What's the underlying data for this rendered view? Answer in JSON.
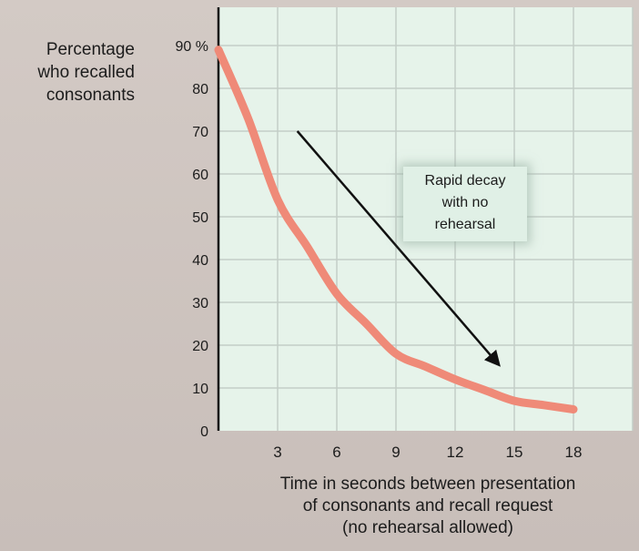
{
  "chart_data": {
    "type": "line",
    "ylabel": [
      "Percentage",
      "who recalled",
      "consonants"
    ],
    "xlabel": [
      "Time in seconds between presentation",
      "of consonants and recall request",
      "(no rehearsal allowed)"
    ],
    "x_ticks": [
      "3",
      "6",
      "9",
      "12",
      "15",
      "18"
    ],
    "y_ticks": [
      "0",
      "10",
      "20",
      "30",
      "40",
      "50",
      "60",
      "70",
      "80",
      "90 %"
    ],
    "xlim": [
      0,
      21
    ],
    "ylim": [
      0,
      100
    ],
    "grid": true,
    "series": [
      {
        "x": [
          0,
          1.5,
          3,
          4.5,
          6,
          7.5,
          9,
          10.5,
          12,
          13.5,
          15,
          16.5,
          18
        ],
        "y": [
          89,
          73,
          54,
          43,
          32,
          25,
          18,
          15,
          12,
          9.5,
          7,
          6,
          5
        ],
        "color": "#ef8a78"
      }
    ],
    "annotation": {
      "text": [
        "Rapid decay",
        "with no",
        "rehearsal"
      ],
      "arrow_from": [
        4,
        70
      ],
      "arrow_to": [
        14.2,
        15.5
      ]
    }
  }
}
